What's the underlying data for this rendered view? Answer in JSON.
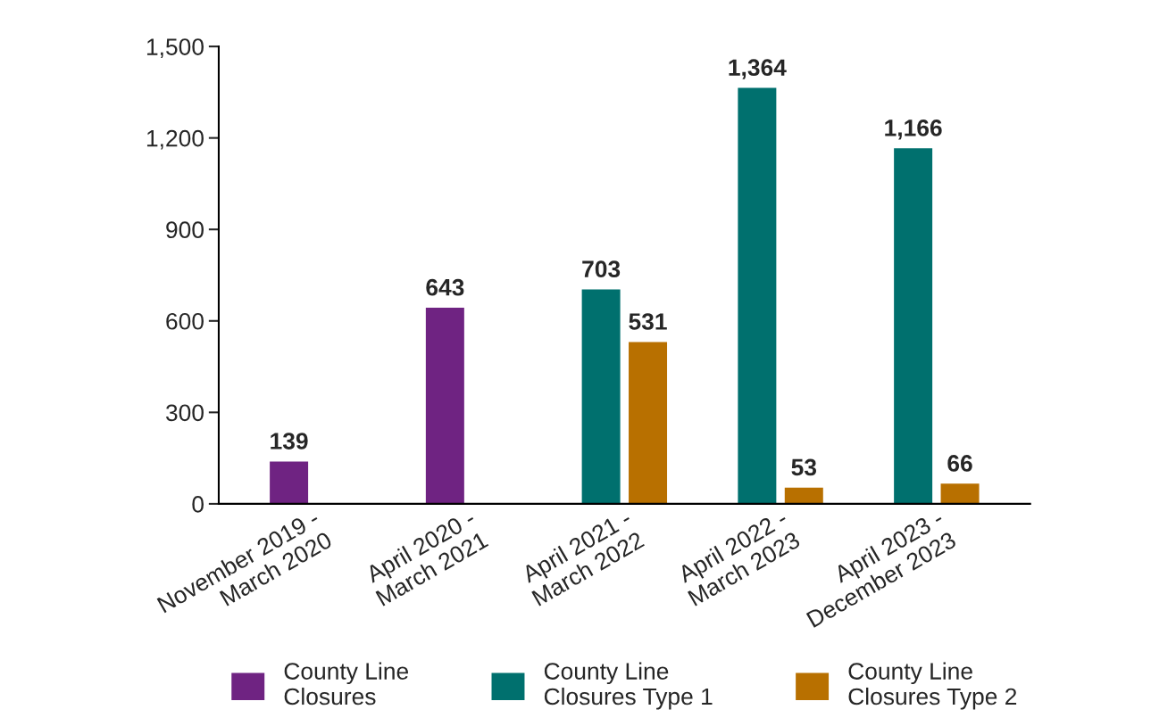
{
  "chart_data": {
    "type": "bar",
    "categories": [
      "November 2019 -\nMarch 2020",
      "April 2020 -\nMarch 2021",
      "April 2021 -\nMarch 2022",
      "April 2022 -\nMarch 2023",
      "April 2023 -\nDecember 2023"
    ],
    "series": [
      {
        "name": "County Line\nClosures",
        "color": "#6f2382",
        "values": [
          139,
          643,
          null,
          null,
          null
        ],
        "value_labels": [
          "139",
          "643",
          null,
          null,
          null
        ]
      },
      {
        "name": "County Line\nClosures Type 1",
        "color": "#00706e",
        "values": [
          null,
          null,
          703,
          1364,
          1166
        ],
        "value_labels": [
          null,
          null,
          "703",
          "1,364",
          "1,166"
        ]
      },
      {
        "name": "County Line\nClosures Type 2",
        "color": "#b87000",
        "values": [
          null,
          null,
          531,
          53,
          66
        ],
        "value_labels": [
          null,
          null,
          "531",
          "53",
          "66"
        ]
      }
    ],
    "ylim": [
      0,
      1500
    ],
    "yticks": [
      0,
      300,
      600,
      900,
      {
        "value": 1200,
        "label": "1,200"
      },
      {
        "value": 1500,
        "label": "1,500"
      }
    ],
    "grid": false,
    "legend": "bottom"
  }
}
